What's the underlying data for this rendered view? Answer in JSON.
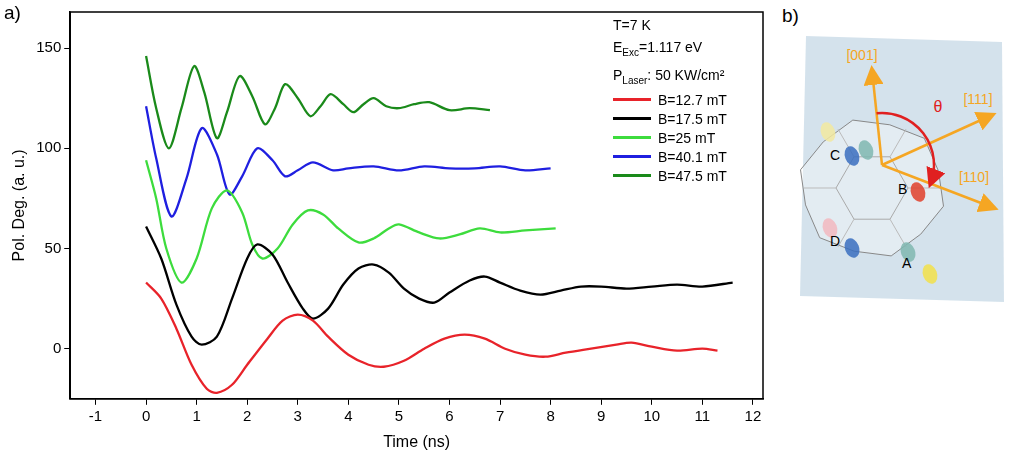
{
  "chart_data": {
    "type": "line",
    "panel": "a)",
    "x_label": "Time (ns)",
    "y_label": "Pol. Deg. (a. u.)",
    "xlim": [
      -1.5,
      12.2
    ],
    "xticks": [
      -1,
      0,
      1,
      2,
      3,
      4,
      5,
      6,
      7,
      8,
      9,
      10,
      11,
      12
    ],
    "ylim": [
      -25,
      168
    ],
    "yticks": [
      0,
      50,
      100,
      150
    ],
    "grid": false,
    "legend": "upper right",
    "annotations": [
      {
        "text": "T=7 K"
      },
      {
        "text": "E",
        "sub": "Exc",
        "after": "=1.117 eV"
      },
      {
        "text": "P",
        "sub": "Laser",
        "after": ": 50 KW/cm²"
      }
    ],
    "series": [
      {
        "name": "B=12.7 mT",
        "color": "#e8232a",
        "x": [
          0,
          0.3,
          0.6,
          0.9,
          1.2,
          1.4,
          1.7,
          2.0,
          2.4,
          2.7,
          3.0,
          3.3,
          3.6,
          4.0,
          4.4,
          4.7,
          5.1,
          5.5,
          5.9,
          6.3,
          6.7,
          7.1,
          7.5,
          7.9,
          8.3,
          8.8,
          9.3,
          9.6,
          10.0,
          10.5,
          11.0,
          11.3
        ],
        "values": [
          33,
          25,
          10,
          -8,
          -20,
          -22,
          -18,
          -8,
          5,
          14,
          17,
          14,
          6,
          -3,
          -8,
          -9,
          -6,
          0,
          5,
          7,
          5,
          0,
          -3,
          -4,
          -2,
          0,
          2,
          3,
          1,
          -1,
          0,
          -1
        ]
      },
      {
        "name": "B=17.5 mT",
        "color": "#000000",
        "x": [
          0,
          0.3,
          0.6,
          0.9,
          1.1,
          1.4,
          1.7,
          2.0,
          2.2,
          2.5,
          2.8,
          3.1,
          3.3,
          3.6,
          3.9,
          4.2,
          4.5,
          4.8,
          5.1,
          5.4,
          5.7,
          6.0,
          6.4,
          6.7,
          7.0,
          7.4,
          7.8,
          8.2,
          8.6,
          9.0,
          9.5,
          10.0,
          10.5,
          11.0,
          11.6
        ],
        "values": [
          61,
          45,
          22,
          6,
          2,
          6,
          25,
          45,
          52,
          47,
          33,
          20,
          15,
          20,
          32,
          40,
          42,
          38,
          30,
          25,
          23,
          28,
          34,
          36,
          33,
          29,
          27,
          29,
          31,
          31,
          30,
          31,
          32,
          31,
          33
        ]
      },
      {
        "name": "B=25 mT",
        "color": "#3ddc3d",
        "x": [
          0,
          0.2,
          0.4,
          0.7,
          1.0,
          1.3,
          1.6,
          1.9,
          2.1,
          2.3,
          2.6,
          2.9,
          3.2,
          3.5,
          3.8,
          4.2,
          4.5,
          4.8,
          5.0,
          5.4,
          5.8,
          6.2,
          6.6,
          7.0,
          7.5,
          8.1
        ],
        "values": [
          94,
          75,
          50,
          33,
          45,
          70,
          79,
          68,
          52,
          45,
          50,
          62,
          69,
          67,
          60,
          53,
          55,
          60,
          62,
          58,
          55,
          57,
          60,
          58,
          59,
          60
        ]
      },
      {
        "name": "B=40.1 mT",
        "color": "#1f1fe0",
        "x": [
          0,
          0.2,
          0.5,
          0.8,
          1.1,
          1.4,
          1.65,
          1.9,
          2.2,
          2.5,
          2.75,
          3.0,
          3.3,
          3.7,
          4.0,
          4.5,
          5.0,
          5.5,
          6.0,
          6.5,
          7.0,
          7.5,
          8.0
        ],
        "values": [
          121,
          95,
          66,
          85,
          110,
          97,
          77,
          86,
          100,
          94,
          86,
          89,
          93,
          89,
          90,
          91,
          89,
          91,
          90,
          90,
          91,
          89,
          90
        ]
      },
      {
        "name": "B=47.5 mT",
        "color": "#1a8a1a",
        "x": [
          0,
          0.2,
          0.45,
          0.7,
          0.95,
          1.15,
          1.4,
          1.6,
          1.85,
          2.1,
          2.35,
          2.55,
          2.75,
          3.0,
          3.25,
          3.45,
          3.65,
          3.9,
          4.1,
          4.3,
          4.5,
          4.75,
          5.0,
          5.3,
          5.6,
          6.0,
          6.4,
          6.8
        ],
        "values": [
          146,
          120,
          100,
          120,
          141,
          128,
          105,
          118,
          136,
          126,
          112,
          120,
          132,
          125,
          116,
          121,
          127,
          122,
          118,
          122,
          125,
          121,
          120,
          122,
          123,
          119,
          120,
          119
        ]
      }
    ]
  },
  "diagram": {
    "panel": "b)",
    "directions": [
      "[001]",
      "[111]",
      "[110]"
    ],
    "angle": "θ",
    "valleys": [
      "A",
      "B",
      "C",
      "D"
    ]
  }
}
